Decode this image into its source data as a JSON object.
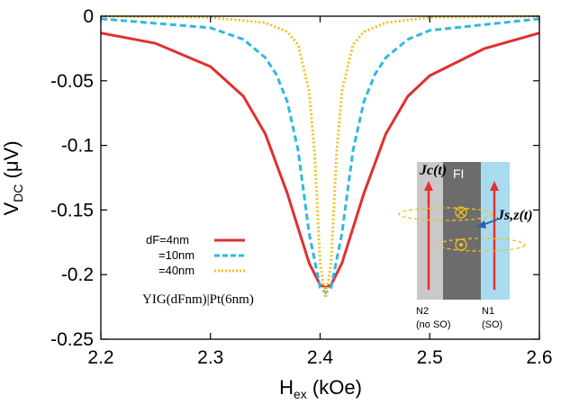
{
  "chart_data": {
    "type": "line",
    "xlabel": "H",
    "xlabel_sub": "ex",
    "xlabel_unit": " (kOe)",
    "ylabel": "V",
    "ylabel_sub": "DC",
    "ylabel_unit": " (μV)",
    "xlim": [
      2.2,
      2.6
    ],
    "ylim": [
      -0.25,
      0
    ],
    "x_ticks": [
      "2.2",
      "2.3",
      "2.4",
      "2.5",
      "2.6"
    ],
    "y_ticks": [
      "0",
      "-0.05",
      "-0.1",
      "-0.15",
      "-0.2",
      "-0.25"
    ],
    "grid": false,
    "legend_position": "lower-left",
    "series": [
      {
        "name": "dF=4nm",
        "color": "#e03030",
        "style": "solid",
        "x": [
          2.2,
          2.25,
          2.3,
          2.33,
          2.35,
          2.37,
          2.38,
          2.39,
          2.4,
          2.405,
          2.41,
          2.42,
          2.43,
          2.44,
          2.46,
          2.48,
          2.5,
          2.55,
          2.6
        ],
        "y": [
          -0.013,
          -0.021,
          -0.039,
          -0.062,
          -0.091,
          -0.137,
          -0.164,
          -0.191,
          -0.208,
          -0.21,
          -0.208,
          -0.191,
          -0.164,
          -0.137,
          -0.091,
          -0.062,
          -0.046,
          -0.025,
          -0.013
        ]
      },
      {
        "name": "=10nm",
        "color": "#30b8e0",
        "style": "dashed",
        "x": [
          2.2,
          2.3,
          2.33,
          2.35,
          2.36,
          2.37,
          2.38,
          2.39,
          2.4,
          2.405,
          2.41,
          2.42,
          2.43,
          2.44,
          2.45,
          2.46,
          2.48,
          2.5,
          2.6
        ],
        "y": [
          -0.002,
          -0.009,
          -0.018,
          -0.032,
          -0.045,
          -0.066,
          -0.104,
          -0.168,
          -0.21,
          -0.214,
          -0.21,
          -0.168,
          -0.104,
          -0.066,
          -0.045,
          -0.032,
          -0.018,
          -0.011,
          -0.002
        ]
      },
      {
        "name": "=40nm",
        "color": "#f0c020",
        "style": "dotted",
        "x": [
          2.2,
          2.3,
          2.35,
          2.37,
          2.38,
          2.39,
          2.395,
          2.4,
          2.405,
          2.41,
          2.415,
          2.42,
          2.43,
          2.44,
          2.46,
          2.5,
          2.6
        ],
        "y": [
          0,
          -0.001,
          -0.005,
          -0.012,
          -0.022,
          -0.058,
          -0.106,
          -0.191,
          -0.218,
          -0.191,
          -0.106,
          -0.058,
          -0.022,
          -0.012,
          -0.005,
          -0.001,
          0
        ]
      }
    ],
    "annotation": "YIG(dFnm)|Pt(6nm)",
    "inset": {
      "label_fi": "FI",
      "label_n2": "N2",
      "label_n2_note": "(no SO)",
      "label_n1": "N1",
      "label_n1_note": "(SO)",
      "label_jc": "Jc(t)",
      "label_js": "Js,z(t)"
    }
  }
}
